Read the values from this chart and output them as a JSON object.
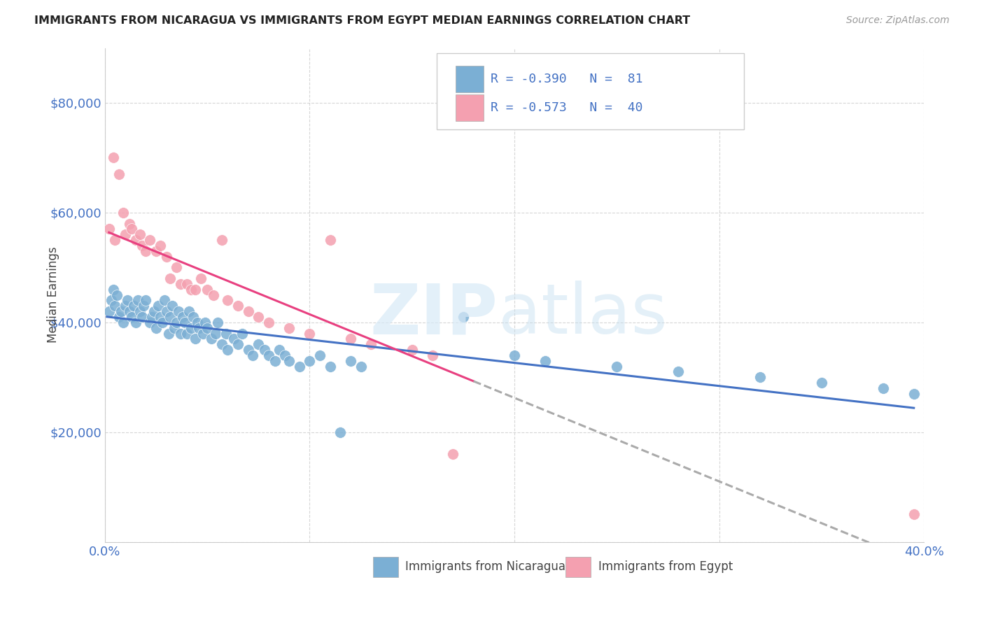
{
  "title": "IMMIGRANTS FROM NICARAGUA VS IMMIGRANTS FROM EGYPT MEDIAN EARNINGS CORRELATION CHART",
  "source": "Source: ZipAtlas.com",
  "ylabel": "Median Earnings",
  "xlim": [
    0.0,
    0.4
  ],
  "ylim": [
    0,
    90000
  ],
  "yticks": [
    0,
    20000,
    40000,
    60000,
    80000
  ],
  "ytick_labels": [
    "",
    "$20,000",
    "$40,000",
    "$60,000",
    "$80,000"
  ],
  "xticks": [
    0.0,
    0.1,
    0.2,
    0.3,
    0.4
  ],
  "xtick_labels": [
    "0.0%",
    "",
    "",
    "",
    "40.0%"
  ],
  "color_nicaragua": "#7BAFD4",
  "color_egypt": "#F4A0B0",
  "line_color_nicaragua": "#4472C4",
  "line_color_egypt": "#E84080",
  "line_color_extrapolated": "#AAAAAA",
  "nicaragua_x": [
    0.002,
    0.003,
    0.004,
    0.005,
    0.006,
    0.007,
    0.008,
    0.009,
    0.01,
    0.011,
    0.012,
    0.013,
    0.014,
    0.015,
    0.016,
    0.017,
    0.018,
    0.019,
    0.02,
    0.022,
    0.023,
    0.024,
    0.025,
    0.026,
    0.027,
    0.028,
    0.029,
    0.03,
    0.031,
    0.032,
    0.033,
    0.034,
    0.035,
    0.036,
    0.037,
    0.038,
    0.039,
    0.04,
    0.041,
    0.042,
    0.043,
    0.044,
    0.045,
    0.046,
    0.048,
    0.049,
    0.05,
    0.052,
    0.054,
    0.055,
    0.057,
    0.059,
    0.06,
    0.063,
    0.065,
    0.067,
    0.07,
    0.072,
    0.075,
    0.078,
    0.08,
    0.083,
    0.085,
    0.088,
    0.09,
    0.095,
    0.1,
    0.105,
    0.11,
    0.115,
    0.12,
    0.125,
    0.175,
    0.2,
    0.215,
    0.25,
    0.28,
    0.32,
    0.35,
    0.38,
    0.395
  ],
  "nicaragua_y": [
    42000,
    44000,
    46000,
    43000,
    45000,
    41000,
    42000,
    40000,
    43000,
    44000,
    42000,
    41000,
    43000,
    40000,
    44000,
    42000,
    41000,
    43000,
    44000,
    40000,
    41000,
    42000,
    39000,
    43000,
    41000,
    40000,
    44000,
    42000,
    38000,
    41000,
    43000,
    39000,
    40000,
    42000,
    38000,
    41000,
    40000,
    38000,
    42000,
    39000,
    41000,
    37000,
    40000,
    39000,
    38000,
    40000,
    39000,
    37000,
    38000,
    40000,
    36000,
    38000,
    35000,
    37000,
    36000,
    38000,
    35000,
    34000,
    36000,
    35000,
    34000,
    33000,
    35000,
    34000,
    33000,
    32000,
    33000,
    34000,
    32000,
    20000,
    33000,
    32000,
    41000,
    34000,
    33000,
    32000,
    31000,
    30000,
    29000,
    28000,
    27000
  ],
  "egypt_x": [
    0.002,
    0.004,
    0.005,
    0.007,
    0.009,
    0.01,
    0.012,
    0.013,
    0.015,
    0.017,
    0.018,
    0.02,
    0.022,
    0.025,
    0.027,
    0.03,
    0.032,
    0.035,
    0.037,
    0.04,
    0.042,
    0.044,
    0.047,
    0.05,
    0.053,
    0.057,
    0.06,
    0.065,
    0.07,
    0.075,
    0.08,
    0.09,
    0.1,
    0.11,
    0.12,
    0.13,
    0.15,
    0.16,
    0.17,
    0.395
  ],
  "egypt_y": [
    57000,
    70000,
    55000,
    67000,
    60000,
    56000,
    58000,
    57000,
    55000,
    56000,
    54000,
    53000,
    55000,
    53000,
    54000,
    52000,
    48000,
    50000,
    47000,
    47000,
    46000,
    46000,
    48000,
    46000,
    45000,
    55000,
    44000,
    43000,
    42000,
    41000,
    40000,
    39000,
    38000,
    55000,
    37000,
    36000,
    35000,
    34000,
    16000,
    5000
  ],
  "egypt_line_end_solid": 0.18,
  "egypt_line_end_dash": 0.4,
  "nicaragua_line_start": 0.001,
  "nicaragua_line_end": 0.395
}
